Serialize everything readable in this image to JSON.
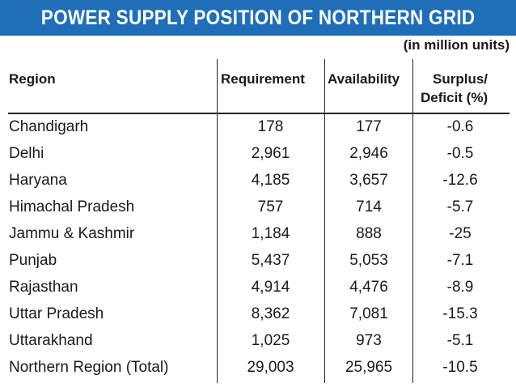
{
  "chart_data": {
    "type": "table",
    "title": "POWER SUPPLY POSITION OF NORTHERN GRID",
    "unit_note": "(in million units)",
    "columns": [
      "Region",
      "Requirement",
      "Availability",
      "Surplus/",
      "Deficit (%)"
    ],
    "rows": [
      {
        "region": "Chandigarh",
        "requirement": "178",
        "availability": "177",
        "surplus_deficit": "-0.6"
      },
      {
        "region": "Delhi",
        "requirement": "2,961",
        "availability": "2,946",
        "surplus_deficit": "-0.5"
      },
      {
        "region": "Haryana",
        "requirement": "4,185",
        "availability": "3,657",
        "surplus_deficit": "-12.6"
      },
      {
        "region": "Himachal Pradesh",
        "requirement": "757",
        "availability": "714",
        "surplus_deficit": "-5.7"
      },
      {
        "region": "Jammu & Kashmir",
        "requirement": "1,184",
        "availability": "888",
        "surplus_deficit": "-25"
      },
      {
        "region": "Punjab",
        "requirement": "5,437",
        "availability": "5,053",
        "surplus_deficit": "-7.1"
      },
      {
        "region": "Rajasthan",
        "requirement": "4,914",
        "availability": "4,476",
        "surplus_deficit": "-8.9"
      },
      {
        "region": "Uttar Pradesh",
        "requirement": "8,362",
        "availability": "7,081",
        "surplus_deficit": "-15.3"
      },
      {
        "region": "Uttarakhand",
        "requirement": "1,025",
        "availability": "973",
        "surplus_deficit": "-5.1"
      },
      {
        "region": "Northern Region (Total)",
        "requirement": "29,003",
        "availability": "25,965",
        "surplus_deficit": "-10.5"
      }
    ]
  },
  "colors": {
    "title_bar": "#1f6fb8",
    "title_text": "#ffffff",
    "text": "#1a1a1a"
  }
}
